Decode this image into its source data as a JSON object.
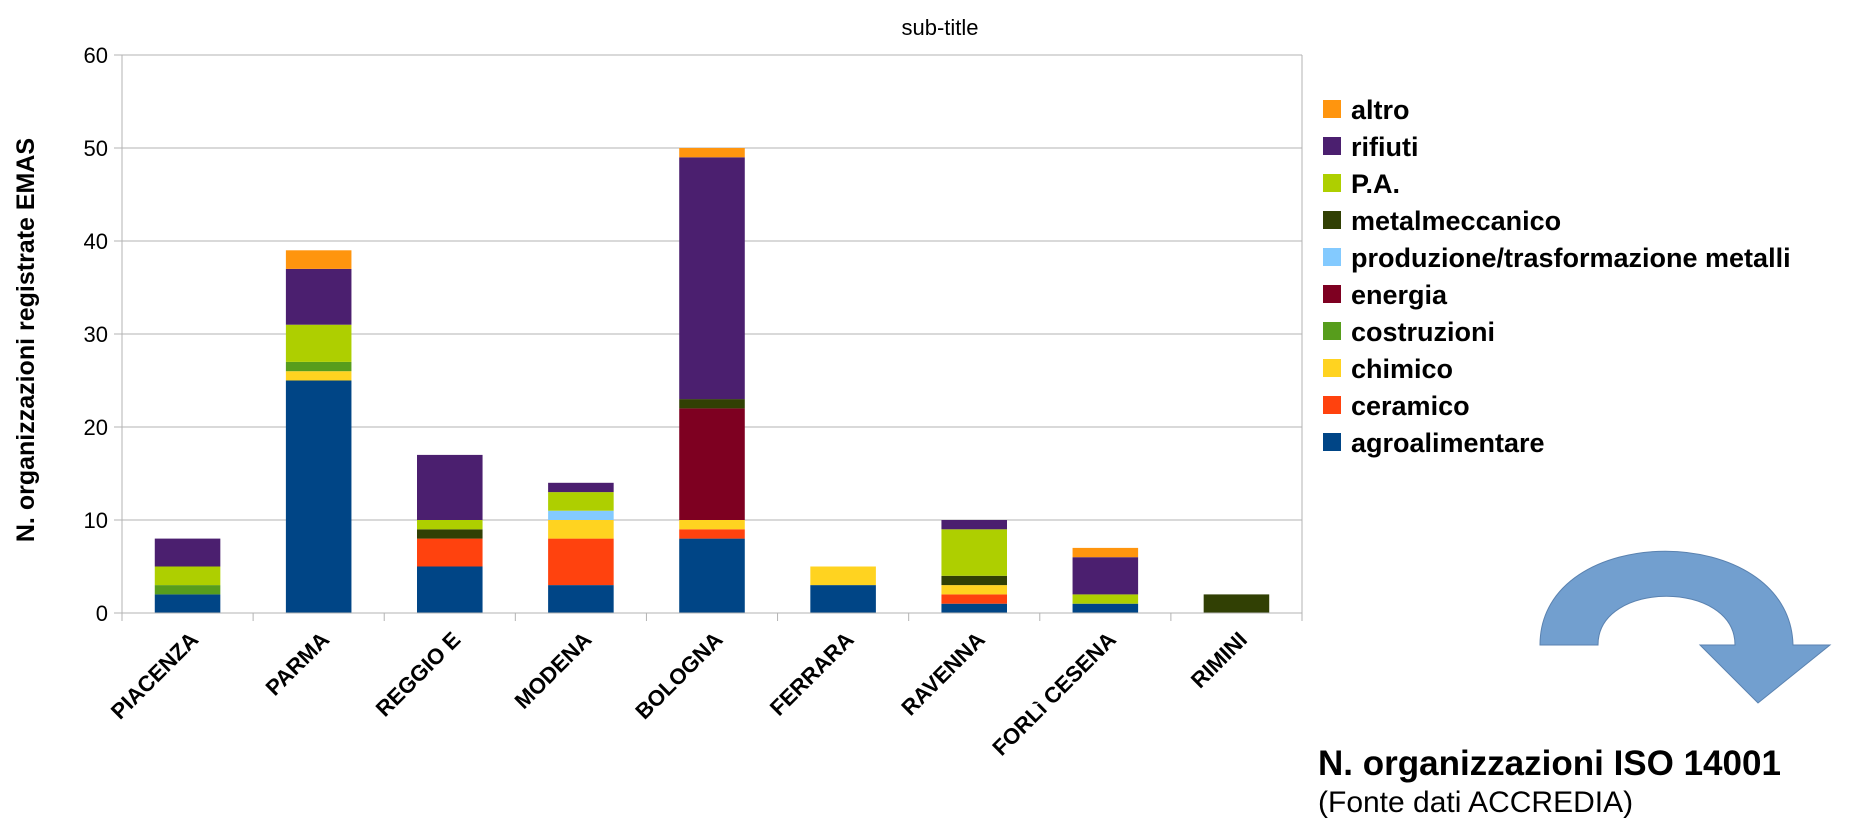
{
  "chart_data": {
    "type": "bar",
    "stacked": true,
    "title": "",
    "subtitle": "sub-title",
    "xlabel": "",
    "ylabel": "N. organizzazioni registrate EMAS",
    "ylim": [
      0,
      60
    ],
    "yticks": [
      0,
      10,
      20,
      30,
      40,
      50,
      60
    ],
    "grid": true,
    "legend_position": "right",
    "categories": [
      "PIACENZA",
      "PARMA",
      "REGGIO E",
      "MODENA",
      "BOLOGNA",
      "FERRARA",
      "RAVENNA",
      "FORLì CESENA",
      "RIMINI"
    ],
    "series": [
      {
        "name": "agroalimentare",
        "color": "#004586",
        "values": [
          2,
          25,
          5,
          3,
          8,
          3,
          1,
          1,
          0
        ]
      },
      {
        "name": "ceramico",
        "color": "#ff420e",
        "values": [
          0,
          0,
          3,
          5,
          1,
          0,
          1,
          0,
          0
        ]
      },
      {
        "name": "chimico",
        "color": "#ffd320",
        "values": [
          0,
          1,
          0,
          2,
          1,
          2,
          1,
          0,
          0
        ]
      },
      {
        "name": "costruzioni",
        "color": "#579d1c",
        "values": [
          1,
          1,
          0,
          0,
          0,
          0,
          0,
          0,
          0
        ]
      },
      {
        "name": "energia",
        "color": "#7e0021",
        "values": [
          0,
          0,
          0,
          0,
          12,
          0,
          0,
          0,
          0
        ]
      },
      {
        "name": "produzione/trasformazione metalli",
        "color": "#83caff",
        "values": [
          0,
          0,
          0,
          1,
          0,
          0,
          0,
          0,
          0
        ]
      },
      {
        "name": "metalmeccanico",
        "color": "#314004",
        "values": [
          0,
          0,
          1,
          0,
          1,
          0,
          1,
          0,
          2
        ]
      },
      {
        "name": "P.A.",
        "color": "#aecf00",
        "values": [
          2,
          4,
          1,
          2,
          0,
          0,
          5,
          1,
          0
        ]
      },
      {
        "name": "rifiuti",
        "color": "#4b1f6f",
        "values": [
          3,
          6,
          7,
          1,
          26,
          0,
          1,
          4,
          0
        ]
      },
      {
        "name": "altro",
        "color": "#ff950e",
        "values": [
          0,
          2,
          0,
          0,
          1,
          0,
          0,
          1,
          0
        ]
      }
    ]
  },
  "annotation": {
    "arrow_color": "#729fcf",
    "arrow_icon": "curved-arrow-icon",
    "text_line1": "N.  organizzazioni ISO 14001",
    "text_line2": "(Fonte dati ACCREDIA)"
  }
}
